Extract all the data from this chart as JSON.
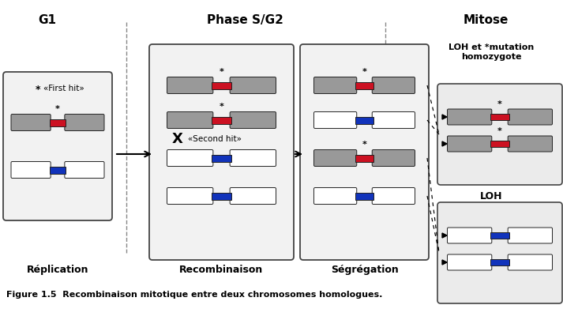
{
  "title": "Figure 1.5  Recombinaison mitotique entre deux chromosomes homologues.",
  "section_labels": [
    "G1",
    "Phase S/G2",
    "Mitose"
  ],
  "bottom_labels": [
    "Réplication",
    "Recombinaison",
    "Ségrégation"
  ],
  "loh_label": "LOH et *mutation\nhomozygote",
  "loh_only_label": "LOH",
  "first_hit_label": "«First hit»",
  "second_hit_label": "«Second hit»",
  "red_color": "#CC1122",
  "blue_color": "#1133BB",
  "gray_dark": "#999999",
  "gray_light": "#CCCCCC",
  "white_color": "#FFFFFF",
  "box_fill": "#EBEBEB",
  "box_edge": "#444444",
  "bg_color": "#FFFFFF"
}
